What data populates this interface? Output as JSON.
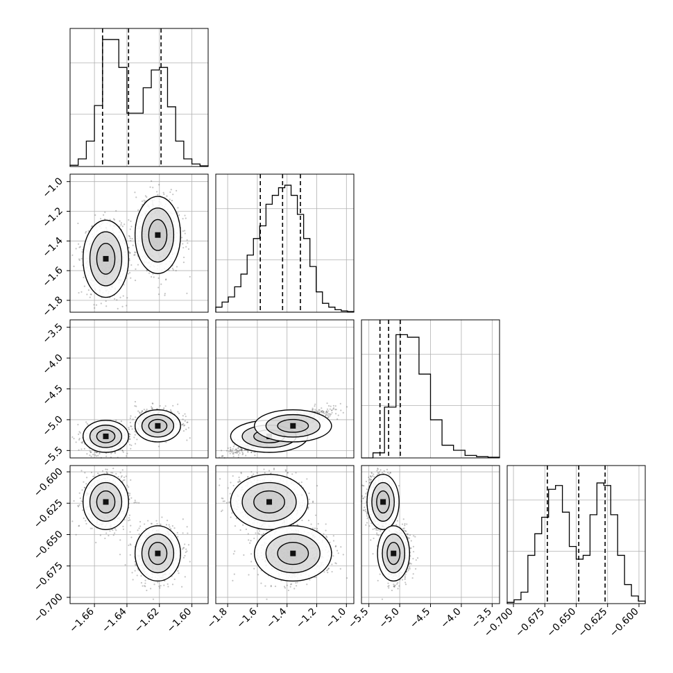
{
  "chart_data": {
    "type": "corner",
    "title": "",
    "grid": true,
    "parameters": [
      {
        "range": [
          -1.675,
          -1.59
        ],
        "ticks": [
          -1.66,
          -1.64,
          -1.62,
          -1.6
        ],
        "tick_labels": [
          "−1.66",
          "−1.64",
          "−1.62",
          "−1.60"
        ],
        "quantiles": [
          -1.655,
          -1.639,
          -1.619
        ],
        "histogram": [
          0.01,
          0.06,
          0.2,
          0.48,
          1.0,
          1.0,
          0.78,
          0.42,
          0.42,
          0.62,
          0.76,
          0.78,
          0.47,
          0.2,
          0.06,
          0.02,
          0.005
        ]
      },
      {
        "range": [
          -1.88,
          -0.95
        ],
        "ticks": [
          -1.8,
          -1.6,
          -1.4,
          -1.2,
          -1.0
        ],
        "tick_labels": [
          "−1.8",
          "−1.6",
          "−1.4",
          "−1.2",
          "−1.0"
        ],
        "quantiles": [
          -1.58,
          -1.43,
          -1.31
        ],
        "histogram": [
          0.04,
          0.08,
          0.12,
          0.2,
          0.3,
          0.45,
          0.58,
          0.68,
          0.85,
          0.92,
          0.98,
          1.0,
          0.92,
          0.77,
          0.58,
          0.36,
          0.16,
          0.07,
          0.04,
          0.02,
          0.01,
          0.005
        ]
      },
      {
        "range": [
          -5.62,
          -3.38
        ],
        "ticks": [
          -5.5,
          -5.0,
          -4.5,
          -4.0,
          -3.5
        ],
        "tick_labels": [
          "−5.5",
          "−5.0",
          "−4.5",
          "−4.0",
          "−3.5"
        ],
        "quantiles": [
          -5.32,
          -5.18,
          -4.99
        ],
        "histogram": [
          0.0,
          0.04,
          0.4,
          0.97,
          0.95,
          0.66,
          0.3,
          0.1,
          0.06,
          0.02,
          0.01,
          0.005
        ]
      },
      {
        "range": [
          -0.705,
          -0.595
        ],
        "ticks": [
          -0.7,
          -0.675,
          -0.65,
          -0.625,
          -0.6
        ],
        "tick_labels": [
          "−0.700",
          "−0.675",
          "−0.650",
          "−0.625",
          "−0.600"
        ],
        "quantiles": [
          -0.673,
          -0.648,
          -0.627
        ],
        "histogram": [
          0.01,
          0.03,
          0.09,
          0.38,
          0.55,
          0.68,
          0.9,
          0.93,
          0.72,
          0.45,
          0.35,
          0.38,
          0.7,
          0.95,
          0.93,
          0.7,
          0.38,
          0.15,
          0.06,
          0.02
        ]
      }
    ],
    "y_tick_labels": [
      [],
      [
        "−1.0",
        "−1.2",
        "−1.4",
        "−1.6",
        "−1.8"
      ],
      [
        "−3.5",
        "−4.0",
        "−4.5",
        "−5.0",
        "−5.5"
      ],
      [
        "−0.600",
        "−0.625",
        "−0.650",
        "−0.675",
        "−0.700"
      ]
    ],
    "y_ticks": [
      [],
      [
        -1.0,
        -1.2,
        -1.4,
        -1.6,
        -1.8
      ],
      [
        -3.5,
        -4.0,
        -4.5,
        -5.0,
        -5.5
      ],
      [
        -0.6,
        -0.625,
        -0.65,
        -0.675,
        -0.7
      ]
    ],
    "modes": {
      "p0": [
        -1.653,
        -1.621
      ],
      "p1": [
        -1.52,
        -1.36
      ],
      "p2": [
        -5.27,
        -5.1
      ],
      "p3": [
        -0.624,
        -0.665
      ]
    },
    "mode_spread": {
      "p0": 0.007,
      "p1": 0.13,
      "p2": 0.13,
      "p3": 0.011
    }
  }
}
